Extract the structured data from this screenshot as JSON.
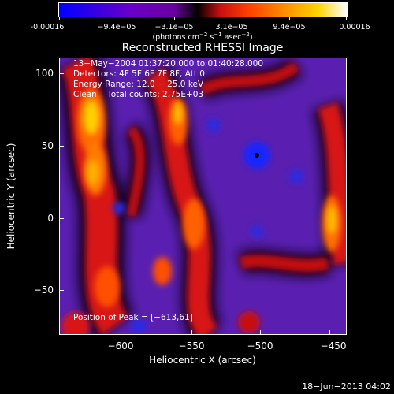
{
  "colorbar": {
    "ticks": [
      "-0.00016",
      "−9.4e−05",
      "−3.1e−05",
      "3.1e−05",
      "9.4e−05",
      "0.00016"
    ],
    "units_main": "(photons cm",
    "units_sup1": "−2",
    "units_mid": " s",
    "units_sup2": "−1",
    "units_mid2": " asec",
    "units_sup3": "−2",
    "units_end": ")"
  },
  "title": "Reconstructed RHESSI Image",
  "info": {
    "time_range": "13−May−2004 01:37:20.000 to 01:40:28.000",
    "detectors": "Detectors: 4F 5F 6F 7F 8F, Att 0",
    "energy": "Energy Range: 12.0 − 25.0 keV",
    "method": "Clean    Total counts: 2.75E+03",
    "peak": "Position of Peak = [−613,61]"
  },
  "axes": {
    "xlabel": "Heliocentric X (arcsec)",
    "ylabel": "Heliocentric Y (arcsec)",
    "xticks": [
      "−600",
      "−550",
      "−500",
      "−450"
    ],
    "yticks": [
      "100",
      "50",
      "0",
      "−50"
    ]
  },
  "footer": {
    "date": "18−Jun−2013 04:02"
  },
  "colors": {
    "background": "#000000",
    "image_base": "#5a1fb0",
    "hot": "#ff4500",
    "peak": "#ffd700",
    "cold": "#0020ff"
  }
}
